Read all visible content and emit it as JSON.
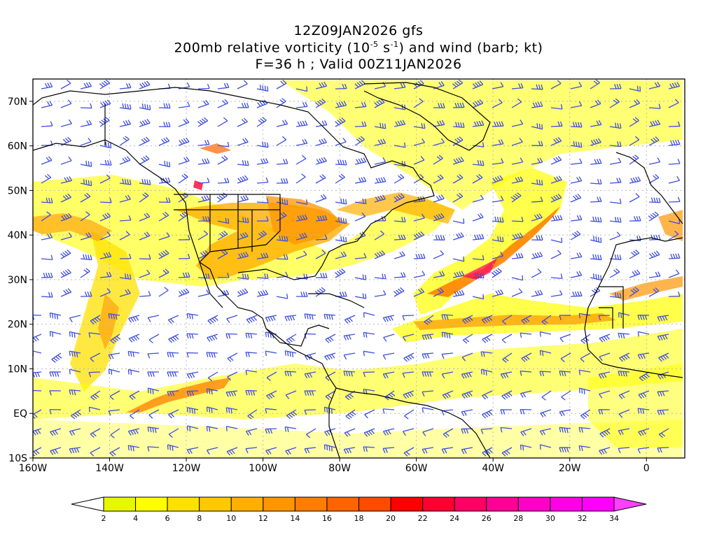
{
  "title": {
    "line1": "12Z09JAN2026 gfs",
    "line2_pre": "200mb relative vorticity (10",
    "line2_exp1": "-5",
    "line2_mid": " s",
    "line2_exp2": "-1",
    "line2_post": ") and wind (barb; kt)",
    "line3": "F=36 h ; Valid 00Z11JAN2026"
  },
  "map": {
    "lon_range": [
      -160,
      10
    ],
    "lat_range": [
      -10,
      75
    ],
    "lon_ticks": [
      {
        "value": -160,
        "label": "160W"
      },
      {
        "value": -140,
        "label": "140W"
      },
      {
        "value": -120,
        "label": "120W"
      },
      {
        "value": -100,
        "label": "100W"
      },
      {
        "value": -80,
        "label": "80W"
      },
      {
        "value": -60,
        "label": "60W"
      },
      {
        "value": -40,
        "label": "40W"
      },
      {
        "value": -20,
        "label": "20W"
      },
      {
        "value": 0,
        "label": "0"
      }
    ],
    "lat_ticks": [
      {
        "value": 70,
        "label": "70N"
      },
      {
        "value": 60,
        "label": "60N"
      },
      {
        "value": 50,
        "label": "50N"
      },
      {
        "value": 40,
        "label": "40N"
      },
      {
        "value": 30,
        "label": "30N"
      },
      {
        "value": 20,
        "label": "20N"
      },
      {
        "value": 10,
        "label": "10N"
      },
      {
        "value": 0,
        "label": "EQ"
      },
      {
        "value": -10,
        "label": "10S"
      }
    ],
    "barb_color": "#3d4de0",
    "coast_color": "#000000"
  },
  "colorbar": {
    "levels": [
      2,
      4,
      6,
      8,
      10,
      12,
      14,
      16,
      18,
      20,
      22,
      24,
      26,
      28,
      30,
      32,
      34
    ],
    "colors": [
      "#ffffff",
      "#e7f700",
      "#ffff00",
      "#ffe100",
      "#ffc800",
      "#ffaf00",
      "#ff9600",
      "#ff7d00",
      "#ff6400",
      "#ff4b00",
      "#ff0000",
      "#ff0032",
      "#ff0064",
      "#ff0096",
      "#ff00c8",
      "#ff00e6",
      "#ff00ff",
      "#ff40ff"
    ]
  }
}
